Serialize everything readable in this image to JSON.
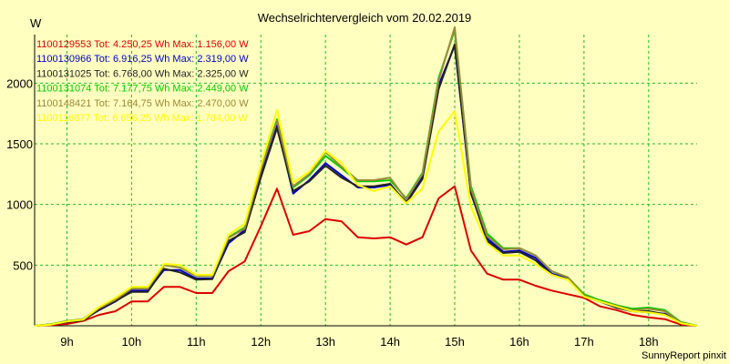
{
  "chart_data": {
    "type": "line",
    "title": "Wechselrichtervergleich vom 20.02.2019",
    "ylabel": "W",
    "xlabel": "",
    "credit": "SunnyReport pinxit",
    "xlim": [
      8.5,
      18.75
    ],
    "ylim": [
      0,
      2400
    ],
    "grid": true,
    "x_tick_values": [
      9,
      10,
      11,
      12,
      13,
      14,
      15,
      16,
      17,
      18
    ],
    "x_tick_labels": [
      "9h",
      "10h",
      "11h",
      "12h",
      "13h",
      "14h",
      "15h",
      "16h",
      "17h",
      "18h"
    ],
    "y_tick_values": [
      500,
      1000,
      1500,
      2000
    ],
    "y_tick_labels": [
      "500",
      "1000",
      "1500",
      "2000"
    ],
    "x": [
      8.5,
      8.75,
      9.0,
      9.25,
      9.5,
      9.75,
      10.0,
      10.25,
      10.5,
      10.75,
      11.0,
      11.25,
      11.5,
      11.75,
      12.0,
      12.25,
      12.5,
      12.75,
      13.0,
      13.25,
      13.5,
      13.75,
      14.0,
      14.25,
      14.5,
      14.75,
      15.0,
      15.25,
      15.5,
      15.75,
      16.0,
      16.25,
      16.5,
      16.75,
      17.0,
      17.25,
      17.5,
      17.75,
      18.0,
      18.25,
      18.5,
      18.75
    ],
    "series": [
      {
        "name": "1100129553",
        "legend": "1100129553 Tot: 4.250,25 Wh Max: 1.156,00 W",
        "color": "#dd0000",
        "values": [
          0,
          5,
          15,
          40,
          90,
          120,
          200,
          200,
          320,
          320,
          270,
          270,
          450,
          530,
          820,
          1130,
          750,
          780,
          880,
          860,
          730,
          720,
          730,
          670,
          730,
          1050,
          1150,
          620,
          430,
          380,
          380,
          330,
          290,
          260,
          230,
          160,
          130,
          90,
          70,
          55,
          10,
          0
        ]
      },
      {
        "name": "1100130966",
        "legend": "1100130966 Tot: 6.916,25 Wh Max: 2.319,00 W",
        "color": "#0000cc",
        "values": [
          0,
          10,
          35,
          50,
          130,
          200,
          290,
          290,
          460,
          460,
          390,
          390,
          680,
          790,
          1250,
          1650,
          1090,
          1200,
          1340,
          1240,
          1140,
          1140,
          1160,
          1020,
          1230,
          1980,
          2310,
          1090,
          720,
          610,
          620,
          560,
          430,
          390,
          240,
          200,
          150,
          120,
          110,
          100,
          20,
          0
        ]
      },
      {
        "name": "1100131025",
        "legend": "1100131025 Tot: 6.768,00 Wh Max: 2.325,00 W",
        "color": "#222222",
        "values": [
          0,
          12,
          30,
          45,
          135,
          205,
          280,
          280,
          470,
          440,
          380,
          385,
          700,
          770,
          1220,
          1630,
          1110,
          1190,
          1320,
          1220,
          1150,
          1150,
          1170,
          1010,
          1210,
          1950,
          2320,
          1100,
          700,
          600,
          610,
          540,
          420,
          380,
          250,
          200,
          150,
          120,
          120,
          95,
          20,
          0
        ]
      },
      {
        "name": "1100131074",
        "legend": "1100131074 Tot: 7.177,75 Wh Max: 2.449,00 W",
        "color": "#00cc00",
        "values": [
          0,
          12,
          40,
          55,
          150,
          220,
          310,
          310,
          500,
          480,
          410,
          410,
          730,
          810,
          1290,
          1700,
          1140,
          1240,
          1400,
          1300,
          1190,
          1190,
          1200,
          1050,
          1260,
          2040,
          2440,
          1150,
          760,
          640,
          640,
          580,
          450,
          400,
          260,
          210,
          170,
          140,
          150,
          130,
          30,
          0
        ]
      },
      {
        "name": "1100148421",
        "legend": "1100148421 Tot: 7.164,75 Wh Max: 2.470,00 W",
        "color": "#9a8a38",
        "values": [
          0,
          10,
          38,
          55,
          145,
          215,
          305,
          305,
          500,
          480,
          410,
          410,
          725,
          800,
          1280,
          1690,
          1150,
          1250,
          1430,
          1310,
          1200,
          1200,
          1220,
          1040,
          1250,
          2020,
          2460,
          1130,
          740,
          630,
          640,
          580,
          450,
          400,
          250,
          200,
          165,
          130,
          140,
          120,
          25,
          0
        ]
      },
      {
        "name": "1100116877",
        "legend": "1100116877 Tot: 6.656,25 Wh Max: 1.784,00 W",
        "color": "#ffff00",
        "values": [
          0,
          10,
          35,
          50,
          155,
          230,
          320,
          320,
          510,
          500,
          420,
          420,
          750,
          840,
          1320,
          1780,
          1180,
          1270,
          1440,
          1340,
          1160,
          1110,
          1150,
          1010,
          1130,
          1600,
          1770,
          980,
          680,
          580,
          580,
          510,
          420,
          380,
          240,
          200,
          160,
          120,
          110,
          90,
          20,
          0
        ]
      }
    ]
  }
}
